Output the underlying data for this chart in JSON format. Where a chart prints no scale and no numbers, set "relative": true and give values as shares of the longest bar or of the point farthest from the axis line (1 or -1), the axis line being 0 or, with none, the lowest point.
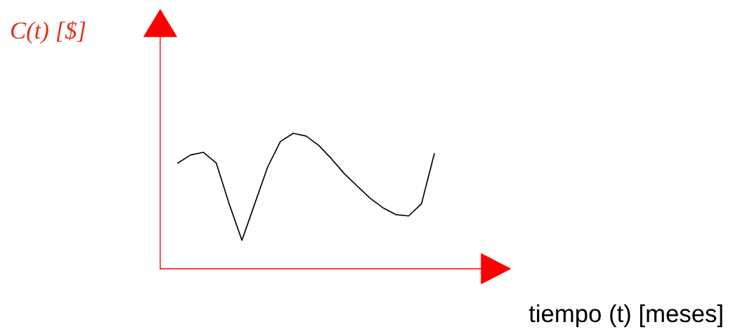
{
  "chart_data": {
    "type": "line",
    "relative": true,
    "xlabel": "tiempo (t) [meses]",
    "annotations": [
      "C(t) [$]"
    ],
    "categories": [
      null,
      null,
      null,
      null,
      null,
      null,
      null,
      null,
      null,
      null,
      null,
      null,
      null,
      null,
      null,
      null,
      null,
      null,
      null,
      null,
      null
    ],
    "series": [
      {
        "color": "#000000",
        "values": [
          0.78,
          0.84,
          0.86,
          0.78,
          0.48,
          0.21,
          0.48,
          0.75,
          0.94,
          1,
          0.98,
          0.91,
          0.81,
          0.7,
          0.61,
          0.52,
          0.45,
          0.4,
          0.39,
          0.48,
          0.85
        ]
      }
    ],
    "grid": false,
    "tick_labels": false
  }
}
